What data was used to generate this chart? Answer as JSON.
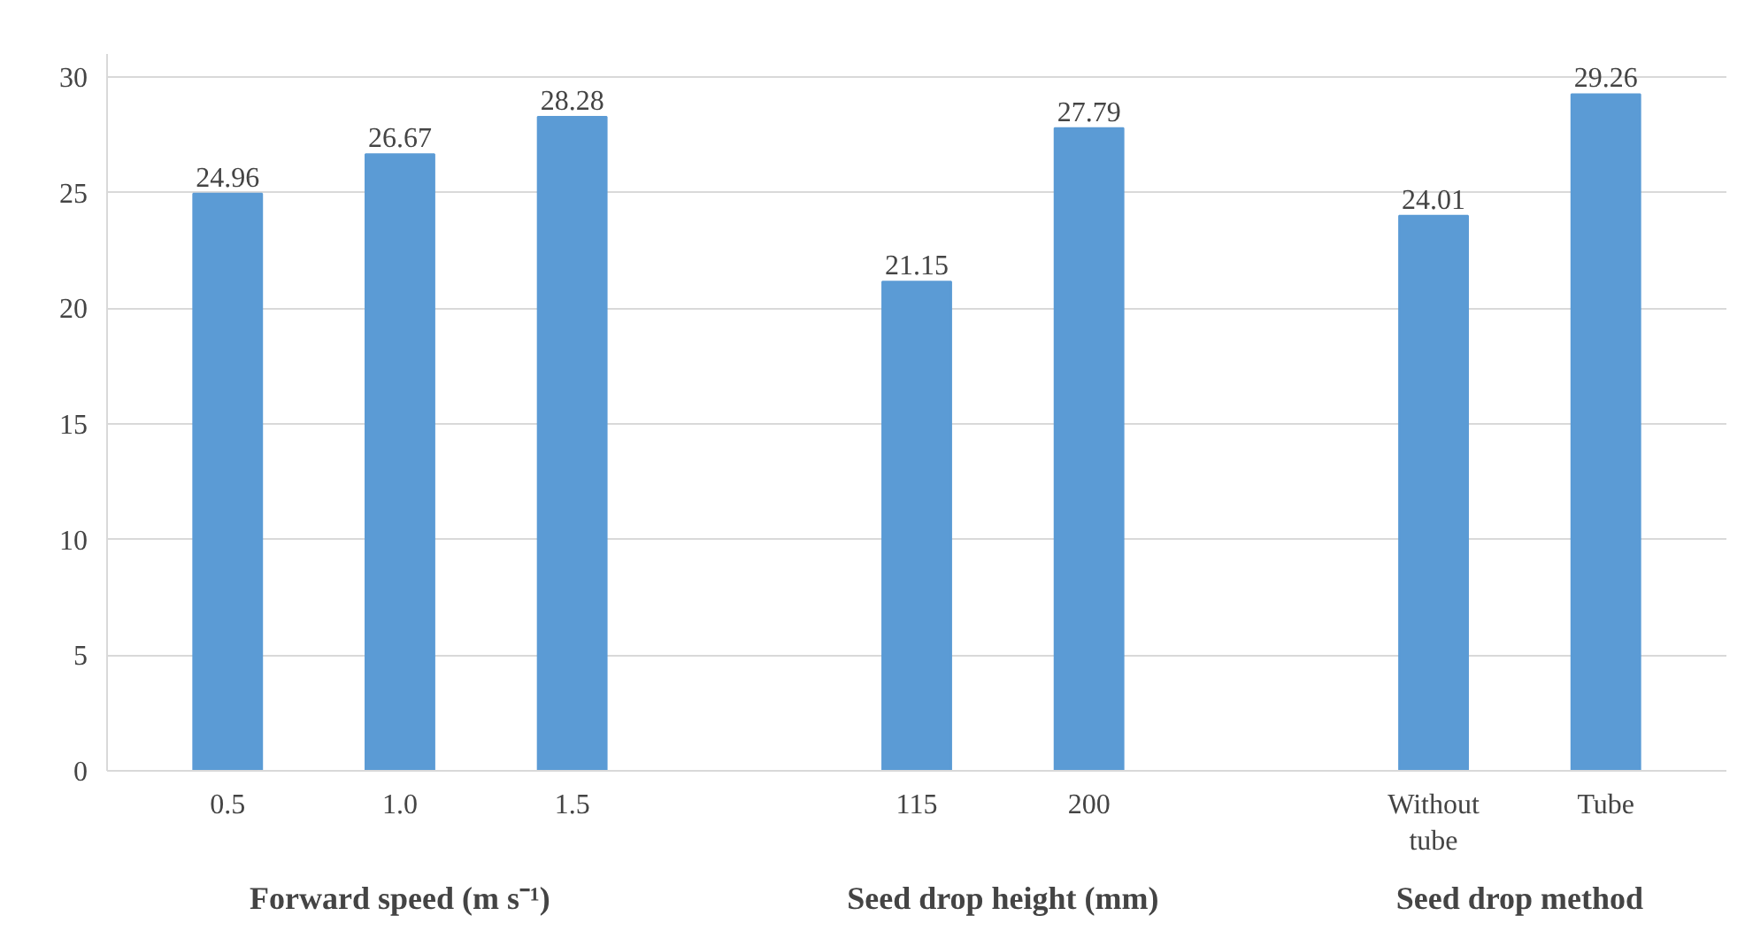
{
  "chart_data": {
    "type": "bar",
    "categories": [
      "0.5",
      "1.0",
      "1.5",
      null,
      "115",
      "200",
      null,
      "Without tube",
      "Tube"
    ],
    "values": [
      24.96,
      26.67,
      28.28,
      null,
      21.15,
      27.79,
      null,
      24.01,
      29.26
    ],
    "color": "#5b9bd5",
    "ylim": [
      0,
      31
    ],
    "yticks": [
      0,
      5,
      10,
      15,
      20,
      25,
      30
    ],
    "grid": "y",
    "data_labels": true,
    "annotations": [
      "Forward speed (m s⁻¹)",
      "Seed drop height (mm)",
      "Seed drop method"
    ]
  }
}
